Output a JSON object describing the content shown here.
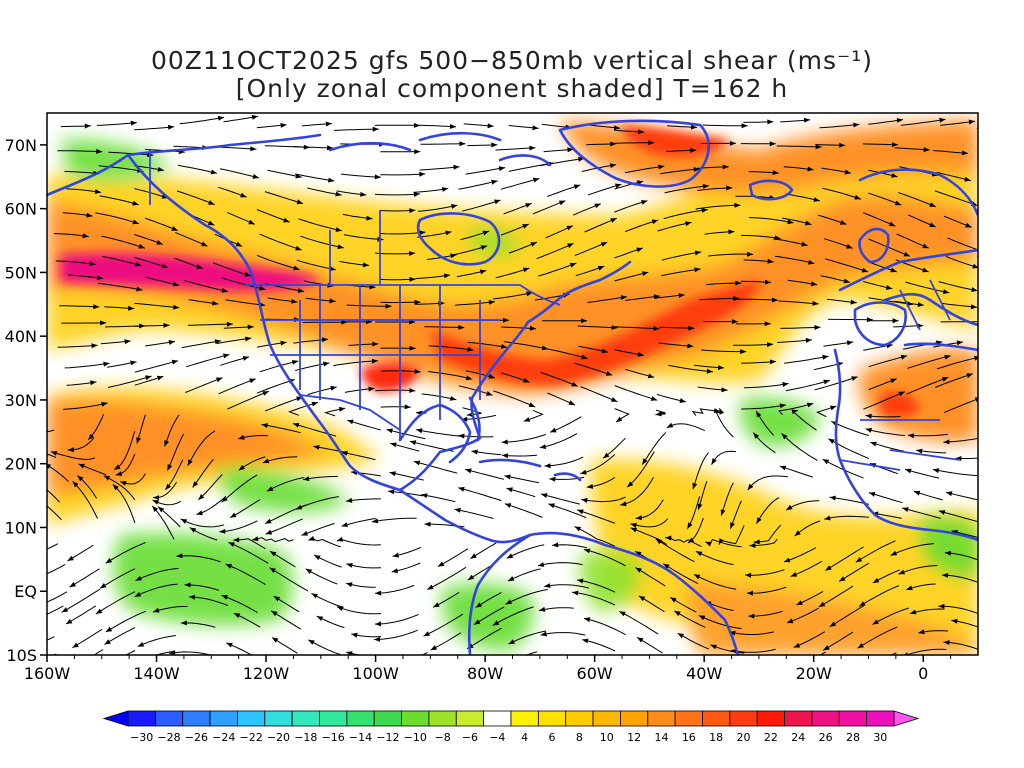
{
  "title": {
    "line1": "00Z11OCT2025 gfs 500−850mb vertical shear (ms⁻¹)",
    "line2": "[Only zonal component shaded] T=162 h"
  },
  "map": {
    "lon_range": [
      -160,
      10
    ],
    "lat_range": [
      -10,
      75
    ],
    "lon_ticks": [
      "160W",
      "140W",
      "120W",
      "100W",
      "80W",
      "60W",
      "40W",
      "20W",
      "0"
    ],
    "lat_ticks": [
      "10S",
      "EQ",
      "10N",
      "20N",
      "30N",
      "40N",
      "50N",
      "60N",
      "70N"
    ],
    "colors": {
      "coastline": "#3344dd",
      "streamline": "#000000",
      "strong_westerly": "#ee1180",
      "moderate_westerly": "#ff8c1a",
      "weak_westerly": "#ffe000",
      "easterly": "#66dd33"
    }
  },
  "colorbar": {
    "labels": [
      "−30",
      "−28",
      "−26",
      "−24",
      "−22",
      "−20",
      "−18",
      "−16",
      "−14",
      "−12",
      "−10",
      "−8",
      "−6",
      "−4",
      "4",
      "6",
      "8",
      "10",
      "12",
      "14",
      "16",
      "18",
      "20",
      "22",
      "24",
      "26",
      "28",
      "30"
    ],
    "colors": [
      "#1a1aff",
      "#2a5cff",
      "#2e7dff",
      "#2ea0ff",
      "#2ec4ff",
      "#33dddd",
      "#33e8c0",
      "#33e89a",
      "#33e070",
      "#3ed84e",
      "#6cdc2e",
      "#9ee22a",
      "#c8ec2e",
      "#ffffff",
      "#fff200",
      "#ffe000",
      "#ffcc00",
      "#ffb800",
      "#ffa400",
      "#ff8c1a",
      "#ff7418",
      "#ff5a14",
      "#ff3c10",
      "#ff1a0a",
      "#f0144c",
      "#ee1180",
      "#ee10a0",
      "#ec10bc"
    ],
    "low_arrow_color": "#0000ff",
    "high_arrow_color": "#ff55ee"
  }
}
